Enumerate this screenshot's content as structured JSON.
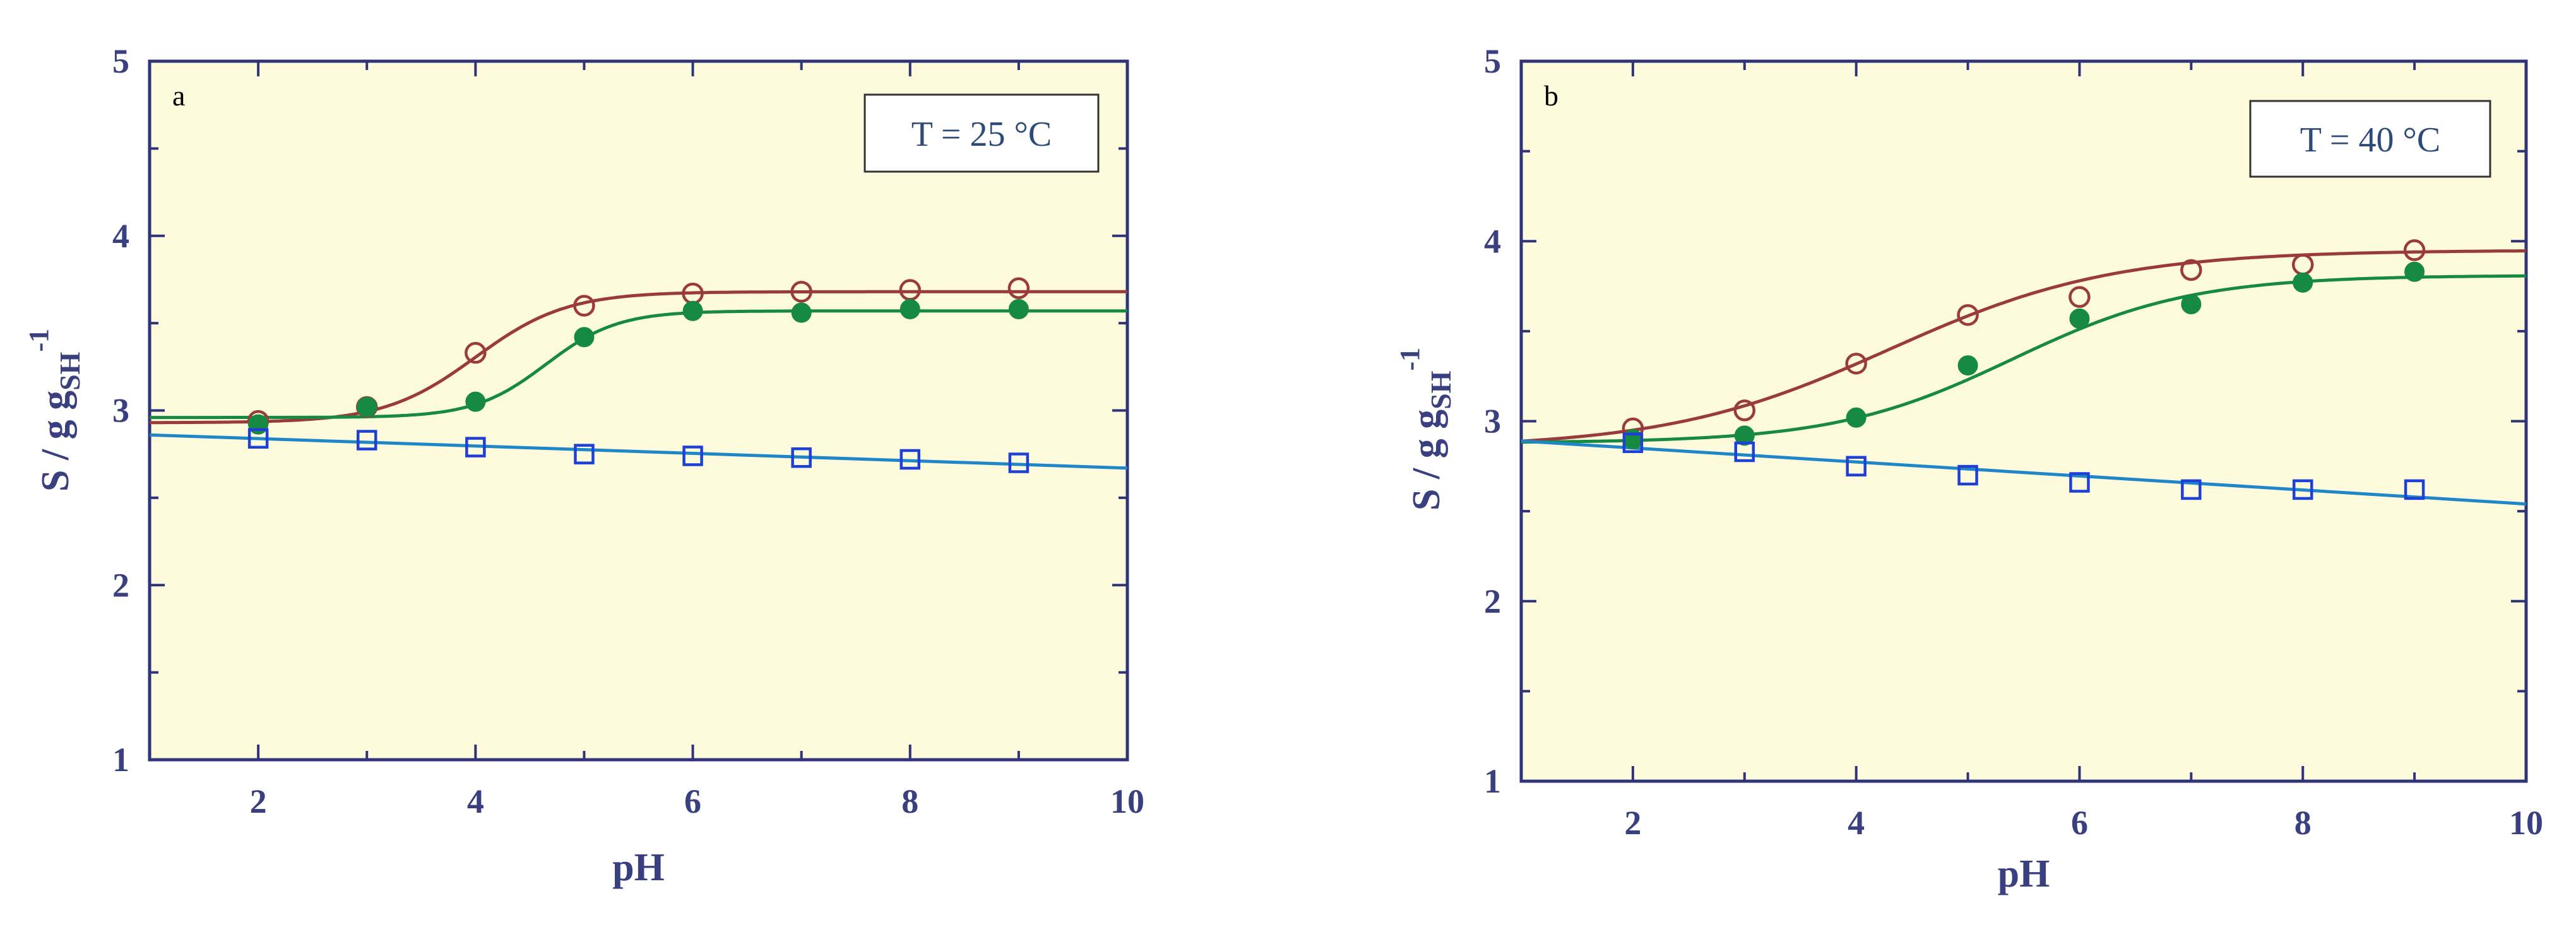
{
  "colors": {
    "plot_background": "#fdfbdc",
    "axis": "#2f3479",
    "series_open_circle": "#9b3a3a",
    "series_filled_circle": "#178a42",
    "series_open_square": "#1f40d6",
    "fit_square_line": "#1f86c8"
  },
  "chart_data": [
    {
      "type": "scatter",
      "panel_label": "a",
      "annotation": "T = 25 °C",
      "xlabel": "pH",
      "ylabel": "S / g g",
      "ylabel_sub": "SH",
      "ylabel_sup": "-1",
      "xlim": [
        1,
        10
      ],
      "ylim": [
        1,
        5
      ],
      "xticks": [
        2,
        4,
        6,
        8,
        10
      ],
      "yticks": [
        1,
        2,
        3,
        4,
        5
      ],
      "grid": false,
      "series": [
        {
          "marker": "open-circle",
          "x": [
            2,
            3,
            4,
            5,
            6,
            7,
            8,
            9
          ],
          "y": [
            2.94,
            3.02,
            3.33,
            3.6,
            3.67,
            3.68,
            3.69,
            3.7
          ]
        },
        {
          "marker": "filled-circle",
          "x": [
            2,
            3,
            4,
            5,
            6,
            7,
            8,
            9
          ],
          "y": [
            2.92,
            3.02,
            3.05,
            3.42,
            3.57,
            3.56,
            3.58,
            3.58
          ]
        },
        {
          "marker": "open-square",
          "x": [
            2,
            3,
            4,
            5,
            6,
            7,
            8,
            9
          ],
          "y": [
            2.84,
            2.83,
            2.79,
            2.75,
            2.74,
            2.73,
            2.72,
            2.7
          ]
        }
      ],
      "fits": [
        {
          "for": "open-circle",
          "low": 2.93,
          "high": 3.68,
          "mid": 4.0,
          "width": 0.42
        },
        {
          "for": "filled-circle",
          "low": 2.96,
          "high": 3.57,
          "mid": 4.65,
          "width": 0.33
        },
        {
          "for": "open-square",
          "x": [
            1,
            10
          ],
          "y": [
            2.86,
            2.67
          ]
        }
      ]
    },
    {
      "type": "scatter",
      "panel_label": "b",
      "annotation": "T = 40 °C",
      "xlabel": "pH",
      "ylabel": "S / g g",
      "ylabel_sub": "SH",
      "ylabel_sup": "-1",
      "xlim": [
        1,
        10
      ],
      "ylim": [
        1,
        5
      ],
      "xticks": [
        2,
        4,
        6,
        8,
        10
      ],
      "yticks": [
        1,
        2,
        3,
        4,
        5
      ],
      "grid": false,
      "series": [
        {
          "marker": "open-circle",
          "x": [
            2,
            3,
            4,
            5,
            6,
            7,
            8,
            9
          ],
          "y": [
            2.96,
            3.06,
            3.32,
            3.59,
            3.69,
            3.84,
            3.87,
            3.95
          ]
        },
        {
          "marker": "filled-circle",
          "x": [
            2,
            3,
            4,
            5,
            6,
            7,
            8,
            9
          ],
          "y": [
            2.9,
            2.92,
            3.02,
            3.31,
            3.57,
            3.65,
            3.77,
            3.83
          ]
        },
        {
          "marker": "open-square",
          "x": [
            2,
            3,
            4,
            5,
            6,
            7,
            8,
            9
          ],
          "y": [
            2.88,
            2.83,
            2.75,
            2.7,
            2.66,
            2.62,
            2.62,
            2.62
          ]
        }
      ],
      "fits": [
        {
          "for": "open-circle",
          "low": 2.85,
          "high": 3.95,
          "mid": 4.3,
          "width": 1.0
        },
        {
          "for": "filled-circle",
          "low": 2.88,
          "high": 3.81,
          "mid": 5.4,
          "width": 0.8
        },
        {
          "for": "open-square",
          "x": [
            1,
            10
          ],
          "y": [
            2.89,
            2.54
          ]
        }
      ]
    }
  ]
}
